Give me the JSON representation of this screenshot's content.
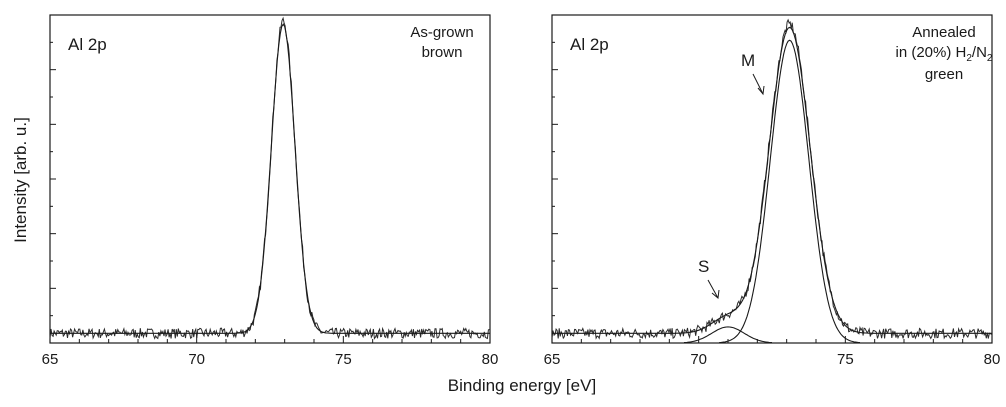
{
  "ylabel": "Intensity [arb. u.]",
  "xlabel": "Binding energy [eV]",
  "chart_data": [
    {
      "type": "line",
      "panel": "left",
      "corner_label": "Al 2p",
      "note_lines": [
        "As-grown",
        "brown"
      ],
      "xlim": [
        65,
        80
      ],
      "x_ticks": [
        "65",
        "70",
        "75",
        "80"
      ],
      "xlabel": "Binding energy [eV]",
      "ylabel": "Intensity [arb. u.]",
      "y_tick_labels": false,
      "series": [
        {
          "kind": "measured",
          "peak_center": 72.95,
          "peak_fwhm": 0.95,
          "peak_height": 0.97,
          "baseline": 0.03
        },
        {
          "kind": "fit",
          "peak_center": 72.95,
          "peak_fwhm": 0.95,
          "peak_height": 0.96,
          "baseline": 0.03
        }
      ]
    },
    {
      "type": "line",
      "panel": "right",
      "corner_label": "Al 2p",
      "note_lines": [
        "Annealed",
        "in (20%) H",
        "2",
        "/N",
        "2",
        "green"
      ],
      "xlim": [
        65,
        80
      ],
      "x_ticks": [
        "65",
        "70",
        "75",
        "80"
      ],
      "xlabel": "Binding energy [eV]",
      "ylabel": "Intensity [arb. u.]",
      "y_tick_labels": false,
      "peak_labels": {
        "main": "M",
        "shoulder": "S"
      },
      "series": [
        {
          "kind": "measured",
          "peak_center": 73.1,
          "peak_fwhm": 1.65,
          "peak_height": 0.96,
          "baseline": 0.03
        },
        {
          "kind": "fit-envelope",
          "peak_center": 73.1,
          "peak_fwhm": 1.65,
          "peak_height": 0.95,
          "baseline": 0.03
        },
        {
          "kind": "component-M",
          "peak_center": 73.1,
          "peak_fwhm": 1.55,
          "peak_height": 0.94,
          "baseline": 0.0
        },
        {
          "kind": "component-S",
          "peak_center": 71.0,
          "peak_fwhm": 1.3,
          "peak_height": 0.05,
          "baseline": 0.0
        }
      ]
    }
  ]
}
